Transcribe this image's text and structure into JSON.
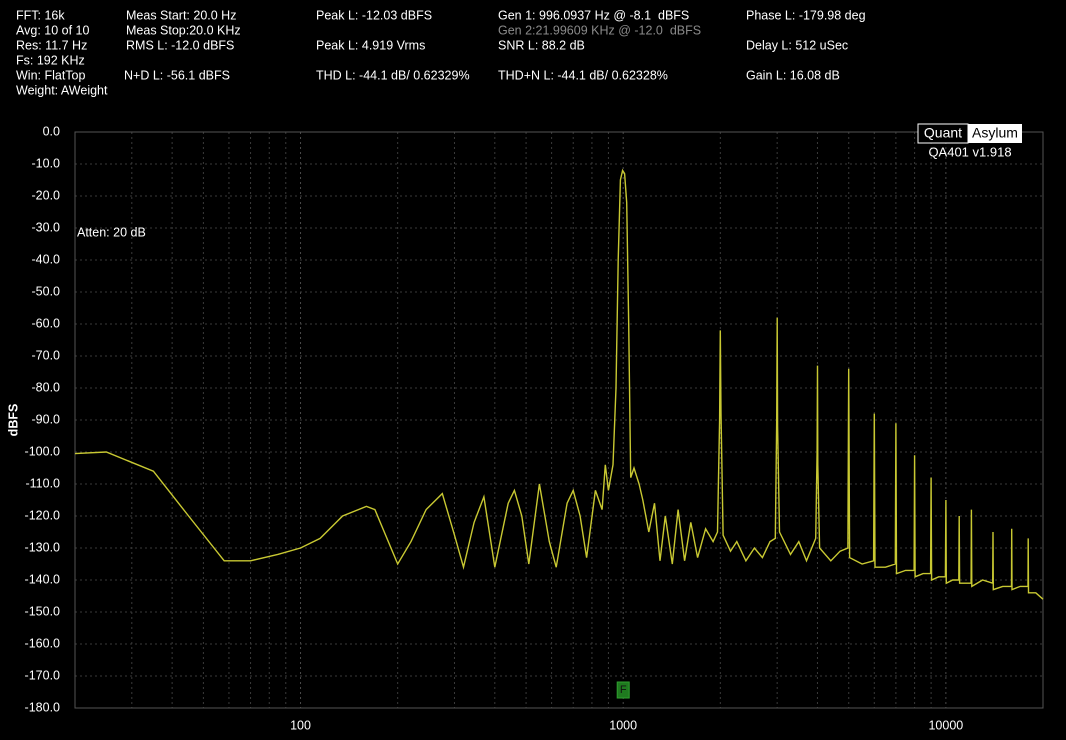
{
  "readouts": {
    "col1": [
      "FFT: 16k",
      "Avg: 10 of 10",
      "Res: 11.7 Hz",
      "Fs: 192 KHz",
      "Win: FlatTop",
      "Weight: AWeight"
    ],
    "col2": [
      "Meas Start: 20.0 Hz",
      "Meas Stop:20.0 KHz",
      "RMS L: -12.0 dBFS",
      "N+D L: -56.1 dBFS"
    ],
    "col3": [
      "Peak L: -12.03 dBFS",
      "Peak L: 4.919 Vrms",
      "THD L: -44.1 dB/ 0.62329%"
    ],
    "col4": [
      "Gen 1: 996.0937 Hz @ -8.1  dBFS",
      "Gen 2:21.99609 KHz @ -12.0  dBFS",
      "SNR L: 88.2 dB",
      "THD+N L: -44.1 dB/ 0.62328%"
    ],
    "col5": [
      "Phase L: -179.98 deg",
      "Delay L: 512 uSec",
      "Gain L: 16.08 dB"
    ]
  },
  "logo": {
    "left": "Quant",
    "right": "Asylum",
    "version": "QA401 v1.918"
  },
  "chart_data": {
    "type": "line",
    "ylabel": "dBFS",
    "annotation": "Atten: 20 dB",
    "marker": {
      "label": "F",
      "x": 1000
    },
    "xscale": "log",
    "color": "#c8c832",
    "grid": true,
    "xlim": [
      20,
      20000
    ],
    "xticks": [
      100,
      1000,
      10000
    ],
    "xgrid": [
      20,
      30,
      40,
      50,
      60,
      70,
      80,
      90,
      200,
      300,
      400,
      500,
      600,
      700,
      800,
      900,
      2000,
      3000,
      4000,
      5000,
      6000,
      7000,
      8000,
      9000
    ],
    "ylim": [
      -180,
      0
    ],
    "yticks": [
      {
        "value": 0,
        "label": "0.0"
      },
      {
        "value": -10,
        "label": "-10.0"
      },
      {
        "value": -20,
        "label": "-20.0"
      },
      {
        "value": -30,
        "label": "-30.0"
      },
      {
        "value": -40,
        "label": "-40.0"
      },
      {
        "value": -50,
        "label": "-50.0"
      },
      {
        "value": -60,
        "label": "-60.0"
      },
      {
        "value": -70,
        "label": "-70.0"
      },
      {
        "value": -80,
        "label": "-80.0"
      },
      {
        "value": -90,
        "label": "-90.0"
      },
      {
        "value": -100,
        "label": "-100.0"
      },
      {
        "value": -110,
        "label": "-110.0"
      },
      {
        "value": -120,
        "label": "-120.0"
      },
      {
        "value": -130,
        "label": "-130.0"
      },
      {
        "value": -140,
        "label": "-140.0"
      },
      {
        "value": -150,
        "label": "-150.0"
      },
      {
        "value": -160,
        "label": "-160.0"
      },
      {
        "value": -170,
        "label": "-170.0"
      },
      {
        "value": -180,
        "label": "-180.0"
      }
    ],
    "x": [
      20,
      25,
      35,
      45,
      58,
      70,
      85,
      100,
      115,
      135,
      160,
      170,
      200,
      220,
      245,
      275,
      300,
      320,
      345,
      370,
      400,
      440,
      460,
      485,
      510,
      550,
      590,
      620,
      670,
      700,
      735,
      770,
      820,
      860,
      880,
      900,
      930,
      950,
      965,
      980,
      996,
      1010,
      1025,
      1040,
      1055,
      1080,
      1120,
      1150,
      1200,
      1250,
      1300,
      1350,
      1420,
      1480,
      1550,
      1620,
      1700,
      1800,
      1900,
      1960,
      1990,
      2000,
      2010,
      2040,
      2150,
      2250,
      2400,
      2550,
      2700,
      2850,
      2960,
      2990,
      3000,
      3010,
      3050,
      3300,
      3500,
      3700,
      3950,
      3990,
      4000,
      4010,
      4060,
      4400,
      4700,
      4970,
      5000,
      5030,
      5500,
      5970,
      6000,
      6030,
      6500,
      6970,
      7000,
      7030,
      7500,
      7970,
      8000,
      8030,
      8500,
      8970,
      9000,
      9030,
      9500,
      9970,
      10000,
      10030,
      10500,
      10970,
      11000,
      11030,
      11500,
      11970,
      12000,
      12030,
      13000,
      13970,
      14000,
      14030,
      15000,
      15970,
      16000,
      16030,
      17000,
      17970,
      18000,
      18030,
      19000,
      20000
    ],
    "values": [
      -100.5,
      -100,
      -106,
      -120,
      -134,
      -134,
      -132,
      -130,
      -127,
      -120,
      -117,
      -118,
      -135,
      -128,
      -118,
      -113,
      -126,
      -136,
      -122,
      -114,
      -136,
      -116,
      -112,
      -120,
      -135,
      -110,
      -128,
      -136,
      -116,
      -112,
      -120,
      -133,
      -112,
      -118,
      -104,
      -112,
      -104,
      -80,
      -40,
      -15,
      -12,
      -13,
      -22,
      -60,
      -108,
      -105,
      -110,
      -115,
      -125,
      -116,
      -134,
      -120,
      -135,
      -118,
      -134,
      -122,
      -133,
      -124,
      -128,
      -125,
      -90,
      -62,
      -88,
      -126,
      -131,
      -128,
      -134,
      -130,
      -133,
      -128,
      -127,
      -90,
      -58,
      -92,
      -125,
      -132,
      -128,
      -134,
      -127,
      -100,
      -73,
      -104,
      -130,
      -134,
      -131,
      -130,
      -74,
      -133,
      -135,
      -134,
      -88,
      -136,
      -136,
      -135,
      -91,
      -138,
      -137,
      -137,
      -101,
      -139,
      -138,
      -138,
      -108,
      -140,
      -139,
      -139,
      -115,
      -141,
      -140,
      -140,
      -120,
      -141,
      -141,
      -141,
      -118,
      -142,
      -140,
      -141,
      -125,
      -143,
      -142,
      -142,
      -124,
      -143,
      -142,
      -142,
      -127,
      -144,
      -144,
      -146
    ]
  }
}
